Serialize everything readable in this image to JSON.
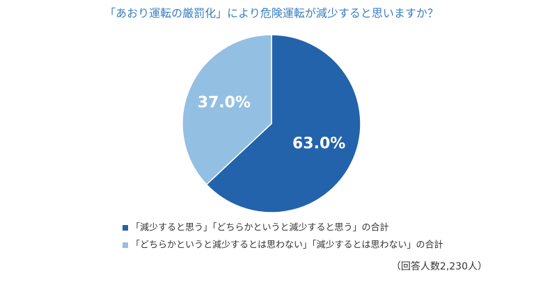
{
  "chart_data": {
    "type": "pie",
    "title": "「あおり運転の厳罰化」により危険運転が減少すると思いますか？",
    "categories": [
      "「減少すると思う」「どちらかというと減少すると思う」の合計",
      "「どちらかというと減少するとは思わない」「減少するとは思わない」の合計"
    ],
    "values": [
      63.0,
      37.0
    ],
    "value_labels": [
      "63.0%",
      "37.0%"
    ],
    "colors": [
      "#2363ab",
      "#93bfe3"
    ],
    "note": "（回答人数2,230人）"
  }
}
